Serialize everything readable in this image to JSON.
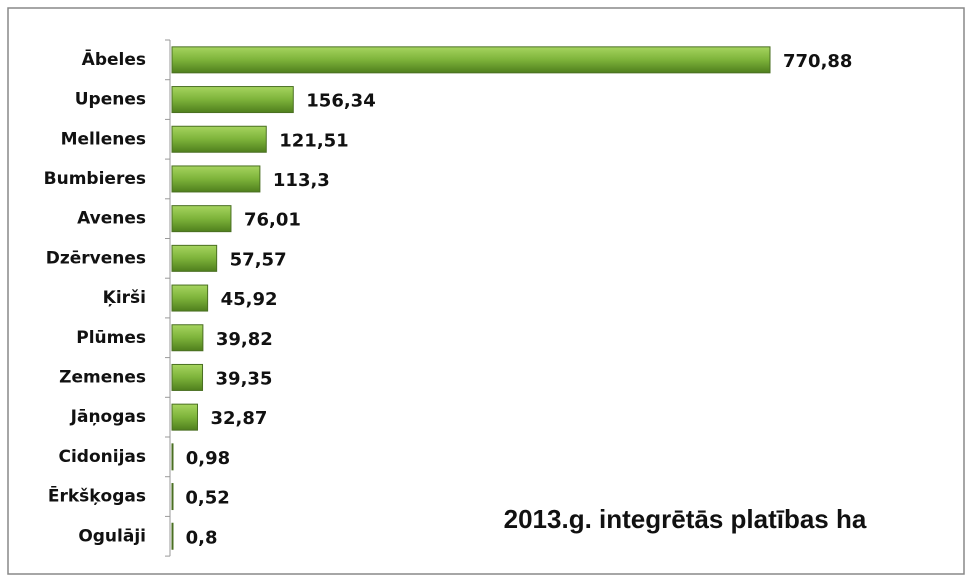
{
  "chart_data": {
    "type": "bar",
    "orientation": "horizontal",
    "title": "2013.g. integrētās platības ha",
    "categories": [
      "Ābeles",
      "Upenes",
      "Mellenes",
      "Bumbieres",
      "Avenes",
      "Dzērvenes",
      "Ķirši",
      "Plūmes",
      "Zemenes",
      "Jāņogas",
      "Cidonijas",
      "Ērkšķogas",
      "Ogulāji"
    ],
    "values": [
      770.88,
      156.34,
      121.51,
      113.3,
      76.01,
      57.57,
      45.92,
      39.82,
      39.35,
      32.87,
      0.98,
      0.52,
      0.8
    ],
    "value_labels": [
      "770,88",
      "156,34",
      "121,51",
      "113,3",
      "76,01",
      "57,57",
      "45,92",
      "39,82",
      "39,35",
      "32,87",
      "0,98",
      "0,52",
      "0,8"
    ],
    "color": "#7db33a"
  }
}
